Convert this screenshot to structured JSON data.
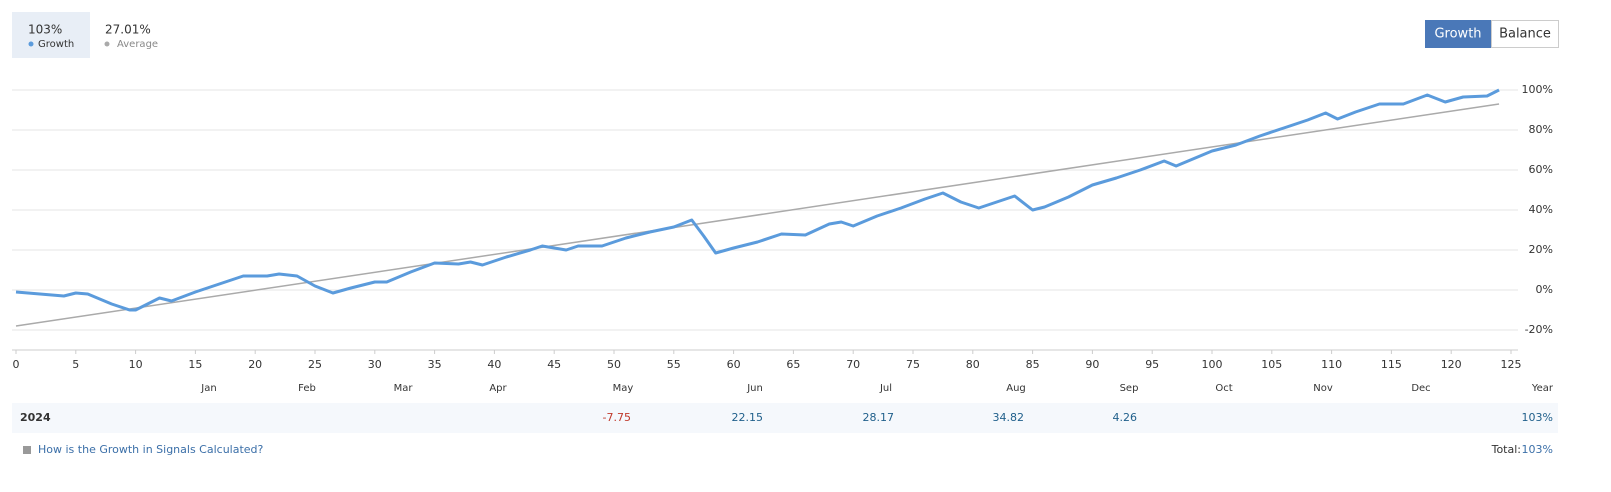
{
  "header": {
    "stats": [
      {
        "value": "103%",
        "label": "Growth"
      },
      {
        "value": "27.01%",
        "label": "Average"
      }
    ],
    "tabs": [
      "Growth",
      "Balance"
    ]
  },
  "chart_data": {
    "type": "line",
    "xlim": [
      0,
      126
    ],
    "ylim": [
      -30,
      110
    ],
    "xticks": [
      0,
      5,
      10,
      15,
      20,
      25,
      30,
      35,
      40,
      45,
      50,
      55,
      60,
      65,
      70,
      75,
      80,
      85,
      90,
      95,
      100,
      105,
      110,
      115,
      120,
      125
    ],
    "yticks": [
      {
        "value": -20,
        "label": "-20%"
      },
      {
        "value": 0,
        "label": "0%"
      },
      {
        "value": 20,
        "label": "20%"
      },
      {
        "value": 40,
        "label": "40%"
      },
      {
        "value": 60,
        "label": "60%"
      },
      {
        "value": 80,
        "label": "80%"
      },
      {
        "value": 100,
        "label": "100%"
      }
    ],
    "grid": true,
    "series": [
      {
        "name": "Growth",
        "color": "#5b9bdc",
        "x": [
          0,
          2,
          4,
          5,
          6,
          8,
          9.5,
          10,
          12,
          13,
          15,
          17,
          19,
          21,
          22,
          23.5,
          25,
          26.5,
          28,
          30,
          31,
          33,
          35,
          37,
          38,
          39,
          41,
          43,
          44,
          46,
          47,
          49,
          51,
          53,
          55,
          56.5,
          57.5,
          58.5,
          60,
          62,
          64,
          66,
          68,
          69,
          70,
          72,
          74,
          76,
          77.5,
          79,
          80.5,
          82,
          83.5,
          85,
          86,
          88,
          90,
          92,
          94,
          96,
          97,
          98,
          100,
          102,
          104,
          106,
          108,
          109.5,
          110.5,
          112,
          114,
          116,
          118,
          119.5,
          121,
          123,
          124
        ],
        "values": [
          -1,
          -2,
          -3,
          -1.5,
          -2,
          -7,
          -10,
          -10,
          -4,
          -5.5,
          -1,
          3,
          7,
          7,
          8,
          7,
          2,
          -1.5,
          1,
          4,
          4,
          9,
          13.5,
          13,
          14,
          12.5,
          16.5,
          20,
          22,
          20,
          22,
          22,
          26,
          29,
          31.5,
          35,
          27,
          18.5,
          21,
          24,
          28,
          27.5,
          33,
          34,
          32,
          37,
          41,
          45.5,
          48.5,
          44,
          41,
          44,
          47,
          40,
          41.5,
          46.5,
          52.5,
          56,
          60,
          64.5,
          62,
          64.5,
          69.5,
          72.5,
          77,
          81,
          85,
          88.5,
          85.5,
          89,
          93,
          93,
          97.5,
          94,
          96.5,
          97,
          100
        ]
      },
      {
        "name": "Average",
        "color": "#aaaaaa",
        "x": [
          0,
          124
        ],
        "values": [
          -18,
          93
        ]
      }
    ]
  },
  "table": {
    "months": [
      "Jan",
      "Feb",
      "Mar",
      "Apr",
      "May",
      "Jun",
      "Jul",
      "Aug",
      "Sep",
      "Oct",
      "Nov",
      "Dec"
    ],
    "year_header": "Year",
    "year": "2024",
    "values": [
      null,
      null,
      null,
      null,
      -7.75,
      22.15,
      28.17,
      34.82,
      4.26,
      null,
      null,
      null
    ],
    "total": "103%"
  },
  "footer": {
    "link": "How is the Growth in Signals Calculated?",
    "total_label": "Total:",
    "total": "103%"
  }
}
